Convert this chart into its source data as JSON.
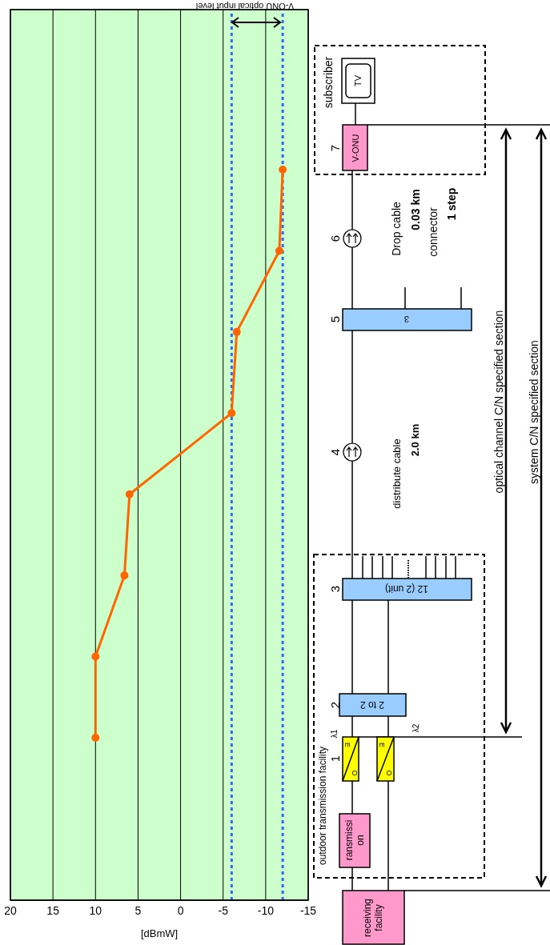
{
  "chart_data": {
    "type": "line",
    "orientation": "horizontal",
    "xlabel": "[dBmW]",
    "categories": [
      null,
      null,
      null,
      null,
      null,
      null,
      null,
      null
    ],
    "series": [
      {
        "color": "#ff6600",
        "values": [
          -12,
          -11.6,
          -6.6,
          -6,
          6,
          6.6,
          10,
          10
        ]
      }
    ],
    "xlim": [
      20,
      -15
    ],
    "xticks": [
      20,
      15,
      10,
      5,
      0,
      -5,
      -10,
      -15
    ],
    "tick_labels": "x",
    "grid": true,
    "marker": "circle",
    "line_style": "solid",
    "ref_lines": [
      {
        "axis": "x",
        "value": -6,
        "color": "#3366ff",
        "line_style": "dashed"
      },
      {
        "axis": "x",
        "value": -12,
        "color": "#3366ff",
        "line_style": "dashed"
      }
    ],
    "annotations": [
      "V-ONU optical input level",
      "outdoor transmission facility",
      "subscriber",
      "TV",
      "V-ONU",
      "7",
      "6",
      "Drop cable",
      "0.03 km",
      "connector",
      "1 step",
      "5",
      "3",
      "4",
      "distribute cable",
      "2.0 km",
      "3",
      "12 (2 unit)",
      "2",
      "2 to 2",
      "1",
      "λ1",
      "λ2",
      "E",
      "O",
      "E",
      "O",
      "ransmissi on",
      "receiving facility",
      "optical channel C/N specified section",
      "system C/N specified section"
    ]
  }
}
